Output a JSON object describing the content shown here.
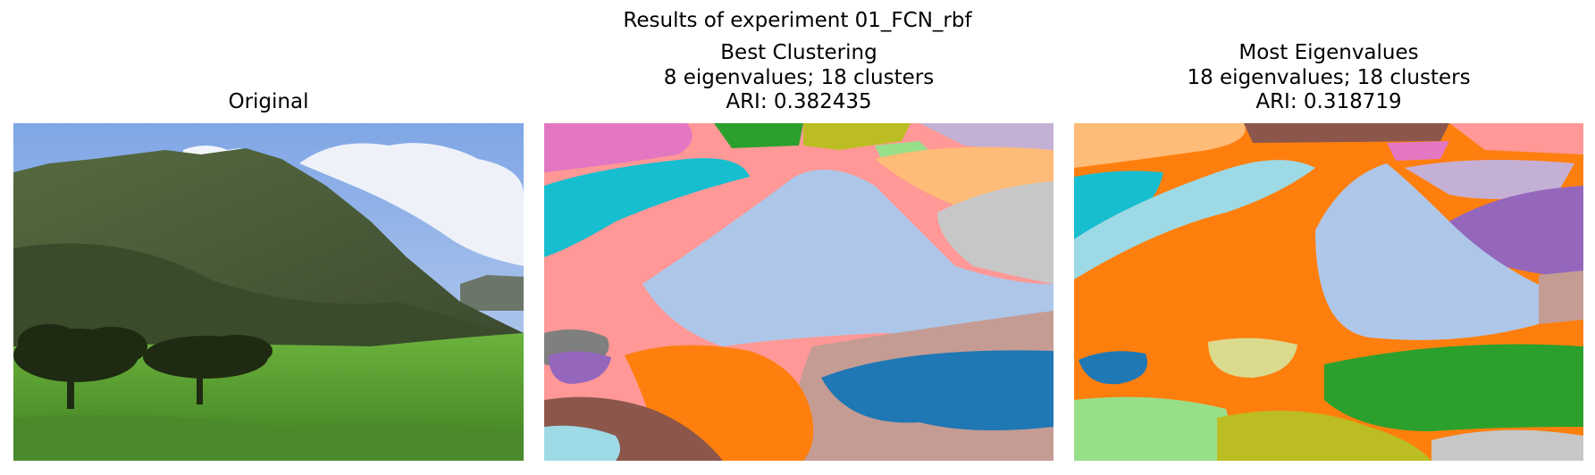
{
  "figure": {
    "suptitle": "Results of experiment 01_FCN_rbf"
  },
  "panels": [
    {
      "title_lines": [
        "Original"
      ]
    },
    {
      "title_lines": [
        "Best Clustering",
        "8 eigenvalues; 18 clusters",
        "ARI: 0.382435"
      ]
    },
    {
      "title_lines": [
        "Most Eigenvalues",
        "18 eigenvalues; 18 clusters",
        "ARI: 0.318719"
      ]
    }
  ],
  "colors": {
    "sky": "#7fa6e6",
    "cloud": "#eef2f8",
    "mountain": "#4a5e3a",
    "grass": "#5fa63a",
    "tree": "#1f2a12",
    "blue": "#1f77b4",
    "orange": "#ff7f0e",
    "green": "#2ca02c",
    "purple": "#9467bd",
    "brown": "#8c564b",
    "pink": "#e377c2",
    "gray": "#7f7f7f",
    "olive": "#bcbd22",
    "cyan": "#17becf",
    "light_blue": "#aec7e8",
    "light_orange": "#ffbb78",
    "light_green": "#98df8a",
    "light_red": "#ff9896",
    "light_purple": "#c5b0d5",
    "light_brown": "#c49c94",
    "light_gray": "#c7c7c7",
    "light_cyan": "#9edae5",
    "light_olive": "#dbdb8d"
  }
}
